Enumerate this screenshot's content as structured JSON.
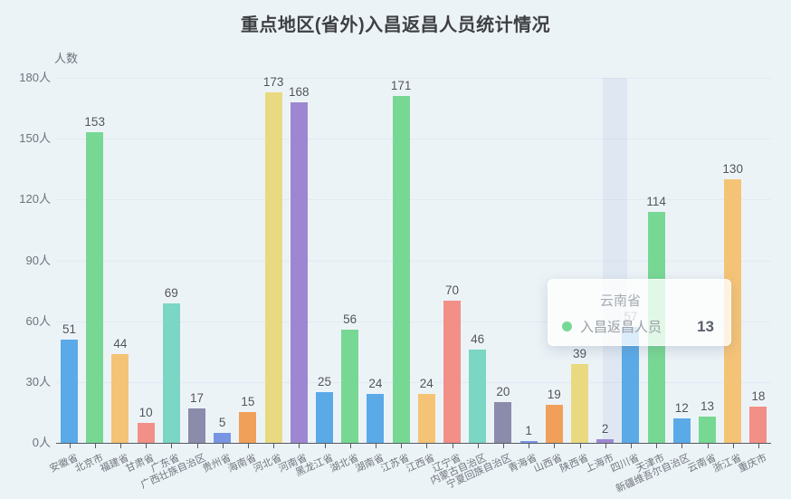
{
  "title": "重点地区(省外)入昌返昌人员统计情况",
  "tooltip": {
    "category": "云南省",
    "series_label": "入昌返昌人员",
    "value": "13",
    "marker_color": "#77d893"
  },
  "colors": {
    "background": "#ecf3f7",
    "grid_line": "#e2e9f2",
    "axis_line": "#565b63",
    "tick_label": "#6e737b",
    "value_label": "#4d535a",
    "title_text": "#3e4043",
    "highlight_band": "rgba(140,162,205,0.13)"
  },
  "chart_data": {
    "type": "bar",
    "title": "重点地区(省外)入昌返昌人员统计情况",
    "xlabel": "",
    "ylabel": "人数",
    "series_name": "入昌返昌人员",
    "ylim": [
      0,
      180
    ],
    "y_tick_interval": 30,
    "y_ticks": [
      "0人",
      "30人",
      "60人",
      "90人",
      "120人",
      "150人",
      "180人"
    ],
    "grid": true,
    "legend_position": "none",
    "highlighted_category": "四川省",
    "categories": [
      "安徽省",
      "北京市",
      "福建省",
      "甘肃省",
      "广东省",
      "广西壮族自治区",
      "贵州省",
      "海南省",
      "河北省",
      "河南省",
      "黑龙江省",
      "湖北省",
      "湖南省",
      "江苏省",
      "江西省",
      "辽宁省",
      "内蒙古自治区",
      "宁夏回族自治区",
      "青海省",
      "山西省",
      "陕西省",
      "上海市",
      "四川省",
      "天津市",
      "新疆维吾尔自治区",
      "云南省",
      "浙江省",
      "重庆市"
    ],
    "values": [
      51,
      153,
      44,
      10,
      69,
      17,
      5,
      15,
      173,
      168,
      25,
      56,
      24,
      171,
      24,
      70,
      46,
      20,
      1,
      19,
      39,
      2,
      57,
      114,
      12,
      13,
      130,
      18
    ],
    "palette": [
      "#5baae8",
      "#77d893",
      "#f5c376",
      "#f28f86",
      "#7bd6c4",
      "#8b8bab",
      "#7795e2",
      "#f0a058",
      "#e9d980",
      "#9d87d2",
      "#5baae8",
      "#77d893"
    ],
    "bar_colors": [
      "#5baae8",
      "#77d893",
      "#f5c376",
      "#f28f86",
      "#7bd6c4",
      "#8b8bab",
      "#7795e2",
      "#f0a058",
      "#e9d980",
      "#9d87d2",
      "#5baae8",
      "#77d893",
      "#5baae8",
      "#77d893",
      "#f5c376",
      "#f28f86",
      "#7bd6c4",
      "#8b8bab",
      "#7795e2",
      "#f0a058",
      "#e9d980",
      "#9d87d2",
      "#5baae8",
      "#77d893",
      "#5baae8",
      "#77d893",
      "#f5c376",
      "#f28f86"
    ]
  }
}
